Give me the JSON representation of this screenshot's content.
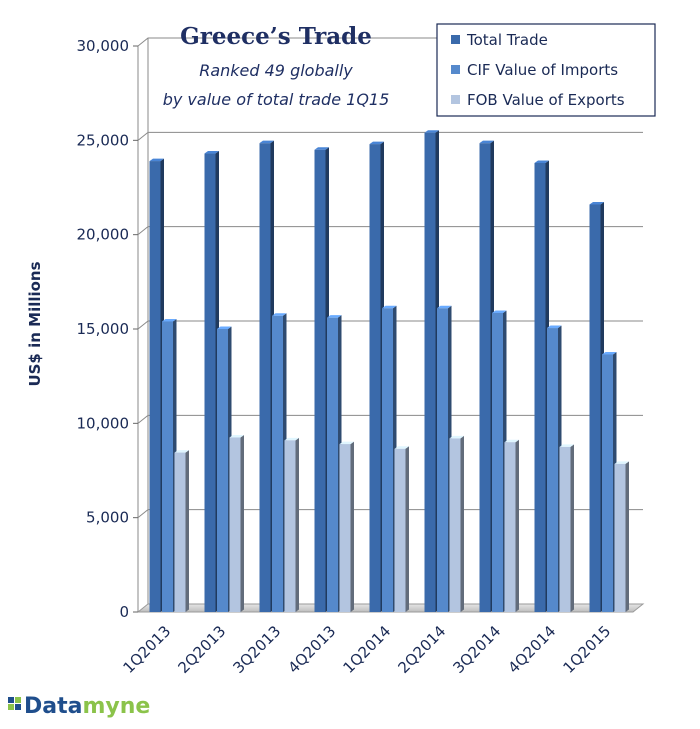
{
  "chart_data": {
    "type": "bar",
    "title": "Greece’s Trade",
    "subtitle_lines": [
      "Ranked 49 globally",
      "by value of total trade 1Q15"
    ],
    "ylabel": "US$ in Millions",
    "xlabel": "",
    "ylim": [
      0,
      30000
    ],
    "yticks": [
      0,
      5000,
      10000,
      15000,
      20000,
      25000,
      30000
    ],
    "ytick_labels": [
      "0",
      "5,000",
      "10,000",
      "15,000",
      "20,000",
      "25,000",
      "30,000"
    ],
    "grid": true,
    "legend_position": "top-right",
    "categories": [
      "1Q2013",
      "2Q2013",
      "3Q2013",
      "4Q2013",
      "1Q2014",
      "2Q2014",
      "3Q2014",
      "4Q2014",
      "1Q2015"
    ],
    "series": [
      {
        "name": "Total Trade",
        "color": "#3a6aab",
        "values": [
          23900,
          24300,
          24850,
          24500,
          24800,
          25400,
          24850,
          23800,
          21600
        ]
      },
      {
        "name": "CIF Value of Imports",
        "color": "#5589cc",
        "values": [
          15400,
          15000,
          15700,
          15600,
          16100,
          16100,
          15850,
          15050,
          13650
        ]
      },
      {
        "name": "FOB Value of Exports",
        "color": "#b3c5e0",
        "values": [
          8450,
          9250,
          9100,
          8900,
          8650,
          9200,
          9000,
          8750,
          7850
        ]
      }
    ]
  },
  "branding": {
    "logo_part1": "Data",
    "logo_part2": "myne"
  }
}
